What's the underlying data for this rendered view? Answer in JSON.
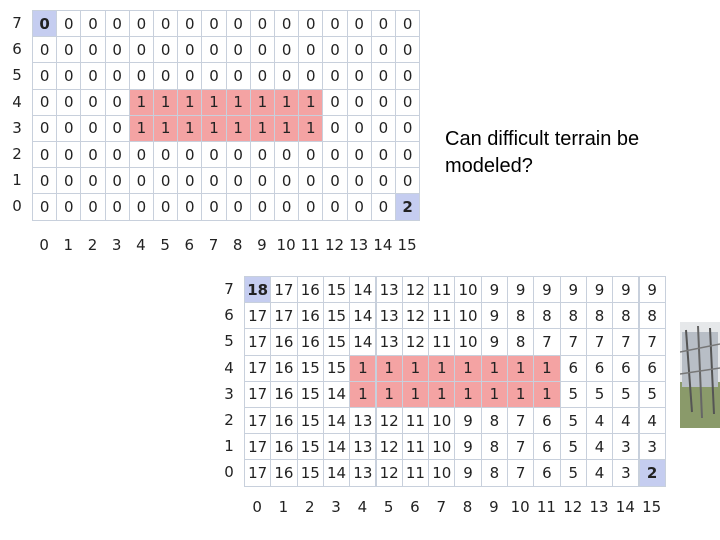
{
  "caption": "Can difficult terrain be modeled?",
  "colors": {
    "highlight": "#f4a3a3",
    "endpoint": "#c5cdf0",
    "grid_line": "#c8d0dc"
  },
  "grid1": {
    "x_labels": [
      "0",
      "1",
      "2",
      "3",
      "4",
      "5",
      "6",
      "7",
      "8",
      "9",
      "10",
      "11",
      "12",
      "13",
      "14",
      "15"
    ],
    "y_labels": [
      "7",
      "6",
      "5",
      "4",
      "3",
      "2",
      "1",
      "0"
    ],
    "rows": [
      [
        "0",
        "0",
        "0",
        "0",
        "0",
        "0",
        "0",
        "0",
        "0",
        "0",
        "0",
        "0",
        "0",
        "0",
        "0",
        "0"
      ],
      [
        "0",
        "0",
        "0",
        "0",
        "0",
        "0",
        "0",
        "0",
        "0",
        "0",
        "0",
        "0",
        "0",
        "0",
        "0",
        "0"
      ],
      [
        "0",
        "0",
        "0",
        "0",
        "0",
        "0",
        "0",
        "0",
        "0",
        "0",
        "0",
        "0",
        "0",
        "0",
        "0",
        "0"
      ],
      [
        "0",
        "0",
        "0",
        "0",
        "1",
        "1",
        "1",
        "1",
        "1",
        "1",
        "1",
        "1",
        "0",
        "0",
        "0",
        "0"
      ],
      [
        "0",
        "0",
        "0",
        "0",
        "1",
        "1",
        "1",
        "1",
        "1",
        "1",
        "1",
        "1",
        "0",
        "0",
        "0",
        "0"
      ],
      [
        "0",
        "0",
        "0",
        "0",
        "0",
        "0",
        "0",
        "0",
        "0",
        "0",
        "0",
        "0",
        "0",
        "0",
        "0",
        "0"
      ],
      [
        "0",
        "0",
        "0",
        "0",
        "0",
        "0",
        "0",
        "0",
        "0",
        "0",
        "0",
        "0",
        "0",
        "0",
        "0",
        "0"
      ],
      [
        "0",
        "0",
        "0",
        "0",
        "0",
        "0",
        "0",
        "0",
        "0",
        "0",
        "0",
        "0",
        "0",
        "0",
        "0",
        "2"
      ]
    ],
    "start_cell": [
      0,
      0
    ],
    "goal_cell": [
      7,
      15
    ]
  },
  "grid2": {
    "x_labels": [
      "0",
      "1",
      "2",
      "3",
      "4",
      "5",
      "6",
      "7",
      "8",
      "9",
      "10",
      "11",
      "12",
      "13",
      "14",
      "15"
    ],
    "y_labels": [
      "7",
      "6",
      "5",
      "4",
      "3",
      "2",
      "1",
      "0"
    ],
    "rows": [
      [
        "18",
        "17",
        "16",
        "15",
        "14",
        "13",
        "12",
        "11",
        "10",
        "9",
        "9",
        "9",
        "9",
        "9",
        "9",
        "9"
      ],
      [
        "17",
        "17",
        "16",
        "15",
        "14",
        "13",
        "12",
        "11",
        "10",
        "9",
        "8",
        "8",
        "8",
        "8",
        "8",
        "8"
      ],
      [
        "17",
        "16",
        "16",
        "15",
        "14",
        "13",
        "12",
        "11",
        "10",
        "9",
        "8",
        "7",
        "7",
        "7",
        "7",
        "7"
      ],
      [
        "17",
        "16",
        "15",
        "15",
        "1",
        "1",
        "1",
        "1",
        "1",
        "1",
        "1",
        "1",
        "6",
        "6",
        "6",
        "6"
      ],
      [
        "17",
        "16",
        "15",
        "14",
        "1",
        "1",
        "1",
        "1",
        "1",
        "1",
        "1",
        "1",
        "5",
        "5",
        "5",
        "5"
      ],
      [
        "17",
        "16",
        "15",
        "14",
        "13",
        "12",
        "11",
        "10",
        "9",
        "8",
        "7",
        "6",
        "5",
        "4",
        "4",
        "4"
      ],
      [
        "17",
        "16",
        "15",
        "14",
        "13",
        "12",
        "11",
        "10",
        "9",
        "8",
        "7",
        "6",
        "5",
        "4",
        "3",
        "3"
      ],
      [
        "17",
        "16",
        "15",
        "14",
        "13",
        "12",
        "11",
        "10",
        "9",
        "8",
        "7",
        "6",
        "5",
        "4",
        "3",
        "2"
      ]
    ],
    "start_cell": [
      0,
      0
    ],
    "goal_cell": [
      7,
      15
    ]
  }
}
